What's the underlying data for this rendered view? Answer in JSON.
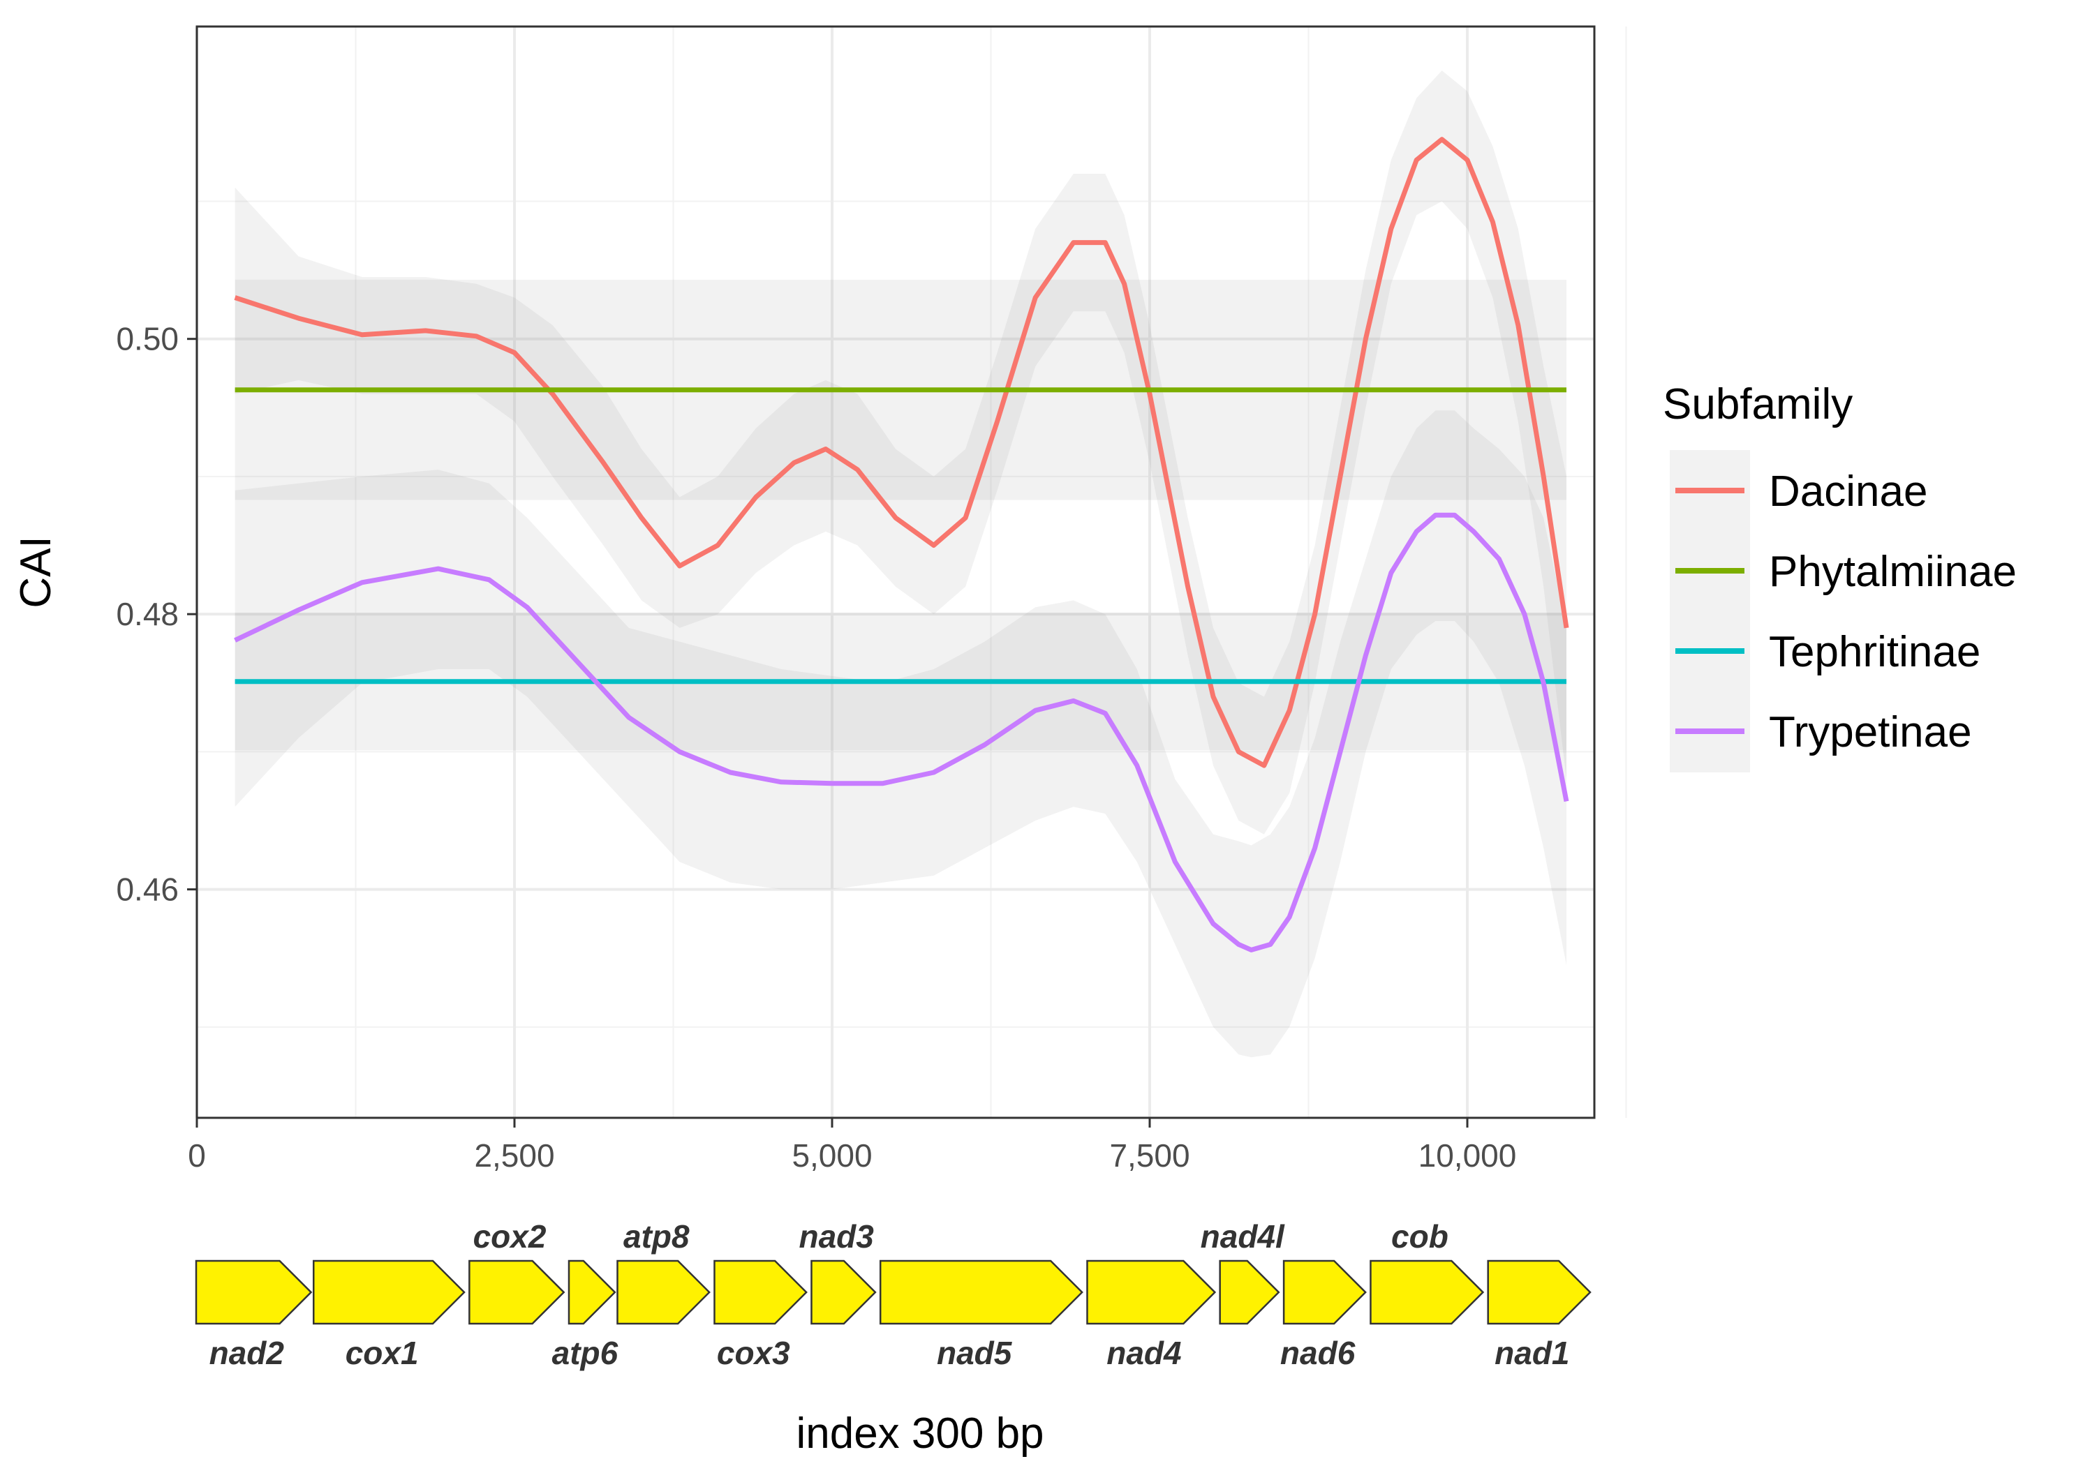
{
  "chart_data": {
    "type": "line",
    "title": "",
    "xlabel": "index 300 bp",
    "ylabel": "CAI",
    "xlim": [
      0,
      11000
    ],
    "ylim": [
      0.4434,
      0.5227
    ],
    "xticks": [
      0,
      2500,
      5000,
      7500,
      10000
    ],
    "xtick_labels": [
      "0",
      "2,500",
      "5,000",
      "7,500",
      "10,000"
    ],
    "yticks": [
      0.46,
      0.48,
      0.5
    ],
    "ytick_labels": [
      "0.46",
      "0.48",
      "0.50"
    ],
    "grid": true,
    "legend": {
      "title": "Subfamily",
      "placement": "right",
      "entries": [
        "Dacinae",
        "Phytalmiinae",
        "Tephritinae",
        "Trypetinae"
      ]
    },
    "series": [
      {
        "name": "Dacinae",
        "color": "#F8766D",
        "x": [
          300,
          800,
          1300,
          1800,
          2200,
          2500,
          2800,
          3200,
          3500,
          3800,
          4100,
          4400,
          4700,
          4950,
          5200,
          5500,
          5800,
          6050,
          6300,
          6600,
          6900,
          7150,
          7300,
          7500,
          7800,
          8000,
          8200,
          8400,
          8600,
          8800,
          9000,
          9200,
          9400,
          9600,
          9800,
          10000,
          10200,
          10400,
          10600,
          10780
        ],
        "y": [
          0.503,
          0.5015,
          0.5003,
          0.5006,
          0.5002,
          0.499,
          0.496,
          0.491,
          0.487,
          0.4835,
          0.485,
          0.4885,
          0.491,
          0.492,
          0.4905,
          0.487,
          0.485,
          0.487,
          0.494,
          0.503,
          0.507,
          0.507,
          0.504,
          0.496,
          0.482,
          0.474,
          0.47,
          0.469,
          0.473,
          0.48,
          0.49,
          0.5,
          0.508,
          0.513,
          0.5145,
          0.513,
          0.5085,
          0.501,
          0.49,
          0.479
        ],
        "ci_lower": [
          0.496,
          0.497,
          0.496,
          0.496,
          0.496,
          0.494,
          0.49,
          0.485,
          0.481,
          0.479,
          0.48,
          0.483,
          0.485,
          0.486,
          0.485,
          0.482,
          0.48,
          0.482,
          0.489,
          0.498,
          0.502,
          0.502,
          0.499,
          0.491,
          0.477,
          0.469,
          0.465,
          0.464,
          0.467,
          0.475,
          0.485,
          0.495,
          0.504,
          0.509,
          0.51,
          0.508,
          0.503,
          0.494,
          0.482,
          0.468
        ],
        "ci_upper": [
          0.511,
          0.506,
          0.5045,
          0.5045,
          0.504,
          0.503,
          0.501,
          0.4965,
          0.492,
          0.4885,
          0.49,
          0.4935,
          0.496,
          0.497,
          0.496,
          0.492,
          0.49,
          0.492,
          0.499,
          0.508,
          0.512,
          0.512,
          0.509,
          0.501,
          0.487,
          0.479,
          0.475,
          0.474,
          0.478,
          0.485,
          0.495,
          0.505,
          0.513,
          0.5175,
          0.5195,
          0.518,
          0.514,
          0.508,
          0.498,
          0.49
        ]
      },
      {
        "name": "Phytalmiinae",
        "color": "#7CAE00",
        "x": [
          300,
          10780
        ],
        "y": [
          0.4963,
          0.4963
        ],
        "ci_lower": [
          0.4883,
          0.4883
        ],
        "ci_upper": [
          0.5043,
          0.5043
        ]
      },
      {
        "name": "Tephritinae",
        "color": "#00BFC4",
        "x": [
          300,
          10780
        ],
        "y": [
          0.4751,
          0.4751
        ],
        "ci_lower": [
          0.4701,
          0.4701
        ],
        "ci_upper": [
          0.4801,
          0.4801
        ]
      },
      {
        "name": "Trypetinae",
        "color": "#C77CFF",
        "x": [
          300,
          800,
          1300,
          1900,
          2300,
          2600,
          3000,
          3400,
          3800,
          4200,
          4600,
          5000,
          5400,
          5800,
          6200,
          6600,
          6900,
          7150,
          7400,
          7700,
          8000,
          8200,
          8300,
          8450,
          8600,
          8800,
          9000,
          9200,
          9400,
          9600,
          9750,
          9900,
          10050,
          10250,
          10450,
          10600,
          10780
        ],
        "y": [
          0.4781,
          0.4803,
          0.4823,
          0.4833,
          0.4825,
          0.4805,
          0.4765,
          0.4725,
          0.47,
          0.4685,
          0.4678,
          0.4677,
          0.4677,
          0.4685,
          0.4705,
          0.473,
          0.4737,
          0.4728,
          0.469,
          0.462,
          0.4575,
          0.456,
          0.4556,
          0.456,
          0.458,
          0.463,
          0.47,
          0.477,
          0.483,
          0.486,
          0.4872,
          0.4872,
          0.486,
          0.484,
          0.48,
          0.475,
          0.4664
        ],
        "ci_lower": [
          0.466,
          0.471,
          0.475,
          0.476,
          0.476,
          0.474,
          0.47,
          0.466,
          0.462,
          0.4605,
          0.46,
          0.46,
          0.4605,
          0.461,
          0.463,
          0.465,
          0.466,
          0.4655,
          0.462,
          0.456,
          0.45,
          0.448,
          0.4478,
          0.448,
          0.45,
          0.455,
          0.462,
          0.47,
          0.476,
          0.4785,
          0.4795,
          0.4795,
          0.478,
          0.475,
          0.469,
          0.463,
          0.4545
        ],
        "ci_upper": [
          0.489,
          0.4895,
          0.49,
          0.4905,
          0.4895,
          0.487,
          0.483,
          0.479,
          0.478,
          0.477,
          0.476,
          0.4755,
          0.475,
          0.476,
          0.478,
          0.4805,
          0.481,
          0.48,
          0.476,
          0.468,
          0.464,
          0.4635,
          0.4632,
          0.464,
          0.466,
          0.471,
          0.478,
          0.484,
          0.49,
          0.4935,
          0.4948,
          0.4948,
          0.4935,
          0.492,
          0.49,
          0.487,
          0.479
        ]
      }
    ],
    "gene_map": {
      "fill_color": "#FFF200",
      "genes": [
        {
          "name": "nad2",
          "start": 0,
          "end": 450,
          "label_position": "below"
        },
        {
          "name": "cox1",
          "start": 460,
          "end": 1050,
          "label_position": "below"
        },
        {
          "name": "cox2",
          "start": 1070,
          "end": 1440,
          "label_position": "above"
        },
        {
          "name": "atp6",
          "start": 1460,
          "end": 1640,
          "label_position": "below"
        },
        {
          "name": "atp8",
          "start": 1650,
          "end": 2010,
          "label_position": "above"
        },
        {
          "name": "cox3",
          "start": 2030,
          "end": 2390,
          "label_position": "below"
        },
        {
          "name": "nad3",
          "start": 2410,
          "end": 2660,
          "label_position": "above"
        },
        {
          "name": "nad5",
          "start": 2680,
          "end": 3470,
          "label_position": "below"
        },
        {
          "name": "nad4",
          "start": 3490,
          "end": 3990,
          "label_position": "below"
        },
        {
          "name": "nad4l",
          "start": 4010,
          "end": 4240,
          "label_position": "above"
        },
        {
          "name": "nad6",
          "start": 4260,
          "end": 4580,
          "label_position": "below"
        },
        {
          "name": "cob",
          "start": 4600,
          "end": 5040,
          "label_position": "above"
        },
        {
          "name": "nad1",
          "start": 5060,
          "end": 5460,
          "label_position": "below"
        }
      ]
    }
  }
}
